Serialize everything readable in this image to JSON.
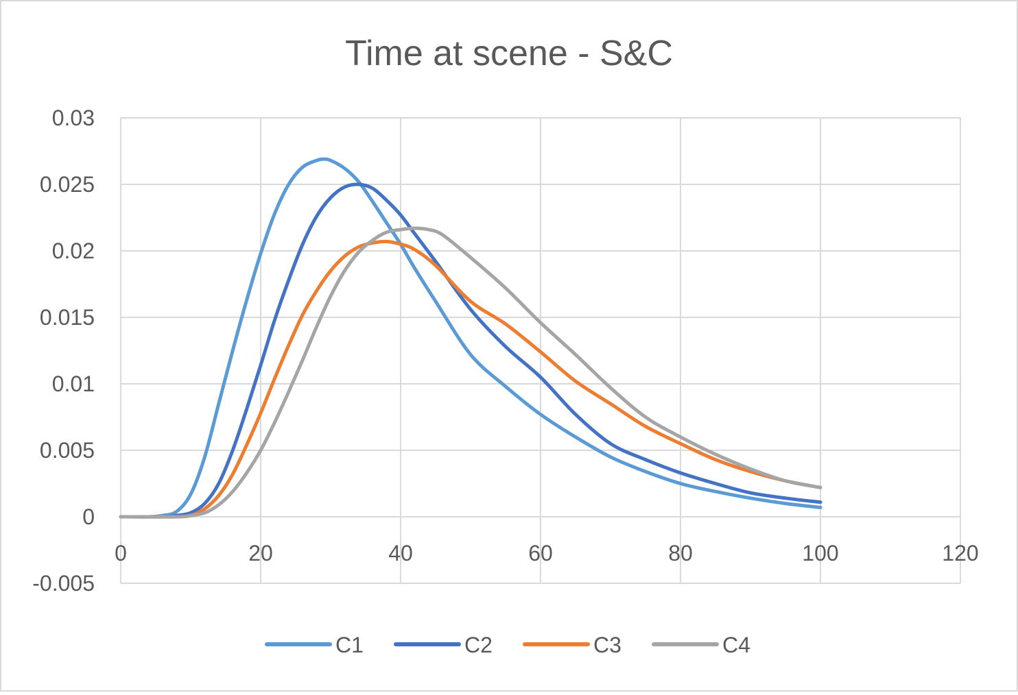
{
  "chart_data": {
    "type": "line",
    "title": "Time at scene - S&C",
    "xlabel": "",
    "ylabel": "",
    "xlim": [
      0,
      120
    ],
    "ylim": [
      -0.005,
      0.03
    ],
    "x_ticks": [
      "0",
      "20",
      "40",
      "60",
      "80",
      "100",
      "120"
    ],
    "y_ticks": [
      "-0.005",
      "0",
      "0.005",
      "0.01",
      "0.015",
      "0.02",
      "0.025",
      "0.03"
    ],
    "grid": true,
    "legend_position": "bottom",
    "series": [
      {
        "name": "C1",
        "color": "#5B9BD5",
        "x": [
          0,
          4,
          6,
          8,
          10,
          12,
          14,
          16,
          18,
          20,
          22,
          24,
          26,
          28,
          29,
          30,
          32,
          34,
          36,
          38,
          40,
          42,
          45,
          50,
          55,
          60,
          65,
          70,
          75,
          80,
          85,
          90,
          95,
          100
        ],
        "y": [
          0,
          0,
          0.0001,
          0.0004,
          0.0017,
          0.0045,
          0.0085,
          0.0125,
          0.0163,
          0.0198,
          0.0228,
          0.025,
          0.0263,
          0.0268,
          0.0269,
          0.0268,
          0.0262,
          0.0252,
          0.0237,
          0.0221,
          0.0205,
          0.0187,
          0.0162,
          0.0122,
          0.0098,
          0.0077,
          0.006,
          0.0045,
          0.0034,
          0.0025,
          0.0019,
          0.0014,
          0.001,
          0.0007
        ]
      },
      {
        "name": "C2",
        "color": "#4472C4",
        "x": [
          0,
          6,
          8,
          10,
          12,
          14,
          16,
          18,
          20,
          22,
          24,
          26,
          28,
          30,
          32,
          34,
          36,
          38,
          40,
          42,
          45,
          50,
          55,
          60,
          65,
          70,
          75,
          80,
          85,
          90,
          95,
          100
        ],
        "y": [
          0,
          0,
          0.0001,
          0.0003,
          0.001,
          0.0025,
          0.005,
          0.0081,
          0.0114,
          0.0148,
          0.0178,
          0.0205,
          0.0226,
          0.024,
          0.0248,
          0.025,
          0.0247,
          0.0238,
          0.0227,
          0.0213,
          0.0192,
          0.0156,
          0.0128,
          0.0105,
          0.0077,
          0.0055,
          0.0043,
          0.0033,
          0.0025,
          0.0018,
          0.0014,
          0.0011
        ]
      },
      {
        "name": "C3",
        "color": "#ED7D31",
        "x": [
          0,
          6,
          8,
          10,
          12,
          14,
          16,
          18,
          20,
          22,
          24,
          26,
          28,
          30,
          32,
          34,
          36,
          38,
          40,
          42,
          45,
          50,
          55,
          60,
          65,
          70,
          75,
          80,
          85,
          90,
          95,
          100
        ],
        "y": [
          0,
          0,
          0,
          0.0001,
          0.0006,
          0.0016,
          0.0032,
          0.0054,
          0.0078,
          0.0104,
          0.0129,
          0.0152,
          0.017,
          0.0185,
          0.0196,
          0.0203,
          0.0206,
          0.0207,
          0.0205,
          0.0201,
          0.0189,
          0.0162,
          0.0145,
          0.0124,
          0.0102,
          0.0085,
          0.0068,
          0.0055,
          0.0043,
          0.0034,
          0.0027,
          0.0022
        ]
      },
      {
        "name": "C4",
        "color": "#A5A5A5",
        "x": [
          0,
          8,
          10,
          12,
          14,
          16,
          18,
          20,
          22,
          24,
          26,
          28,
          30,
          32,
          34,
          36,
          38,
          40,
          42,
          44,
          46,
          50,
          55,
          60,
          65,
          70,
          75,
          80,
          85,
          90,
          95,
          100
        ],
        "y": [
          0,
          0,
          0.0001,
          0.0003,
          0.0009,
          0.0019,
          0.0033,
          0.005,
          0.0071,
          0.0094,
          0.0118,
          0.0143,
          0.0166,
          0.0185,
          0.0199,
          0.0208,
          0.0214,
          0.0216,
          0.0217,
          0.0216,
          0.0212,
          0.0195,
          0.0172,
          0.0146,
          0.0122,
          0.0097,
          0.0075,
          0.006,
          0.0047,
          0.0036,
          0.0027,
          0.0022
        ]
      }
    ]
  }
}
